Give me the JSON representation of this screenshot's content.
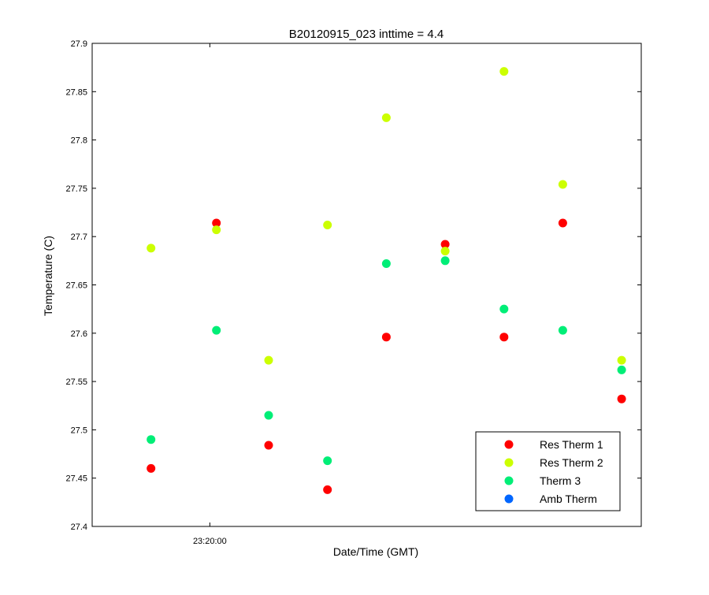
{
  "chart_data": {
    "type": "scatter",
    "title": "B20120915_023 inttime = 4.4",
    "xlabel": "Date/Time (GMT)",
    "ylabel": "Temperature (C)",
    "ylim": [
      27.4,
      27.9
    ],
    "yticks": [
      "27.4",
      "27.45",
      "27.5",
      "27.55",
      "27.6",
      "27.65",
      "27.7",
      "27.75",
      "27.8",
      "27.85",
      "27.9"
    ],
    "xlim": [
      "23:17:00",
      "23:31:00"
    ],
    "xticks": [
      "23:20:00"
    ],
    "grid": false,
    "legend_position": "bottom-right",
    "x": [
      "23:18:30",
      "23:20:10",
      "23:21:30",
      "23:23:00",
      "23:24:30",
      "23:26:00",
      "23:27:30",
      "23:29:00",
      "23:30:30"
    ],
    "series": [
      {
        "name": "Res Therm 1",
        "color": "#ff0000",
        "values": [
          27.46,
          27.714,
          27.484,
          27.438,
          27.596,
          27.692,
          27.596,
          27.714,
          27.532
        ]
      },
      {
        "name": "Res Therm 2",
        "color": "#ccff00",
        "values": [
          27.688,
          27.707,
          27.572,
          27.712,
          27.823,
          27.685,
          27.871,
          27.754,
          27.572
        ]
      },
      {
        "name": "Therm 3",
        "color": "#00ee77",
        "values": [
          27.49,
          27.603,
          27.515,
          27.468,
          27.672,
          27.675,
          27.625,
          27.603,
          27.562
        ]
      },
      {
        "name": "Amb Therm",
        "color": "#0066ff",
        "values": []
      }
    ]
  }
}
